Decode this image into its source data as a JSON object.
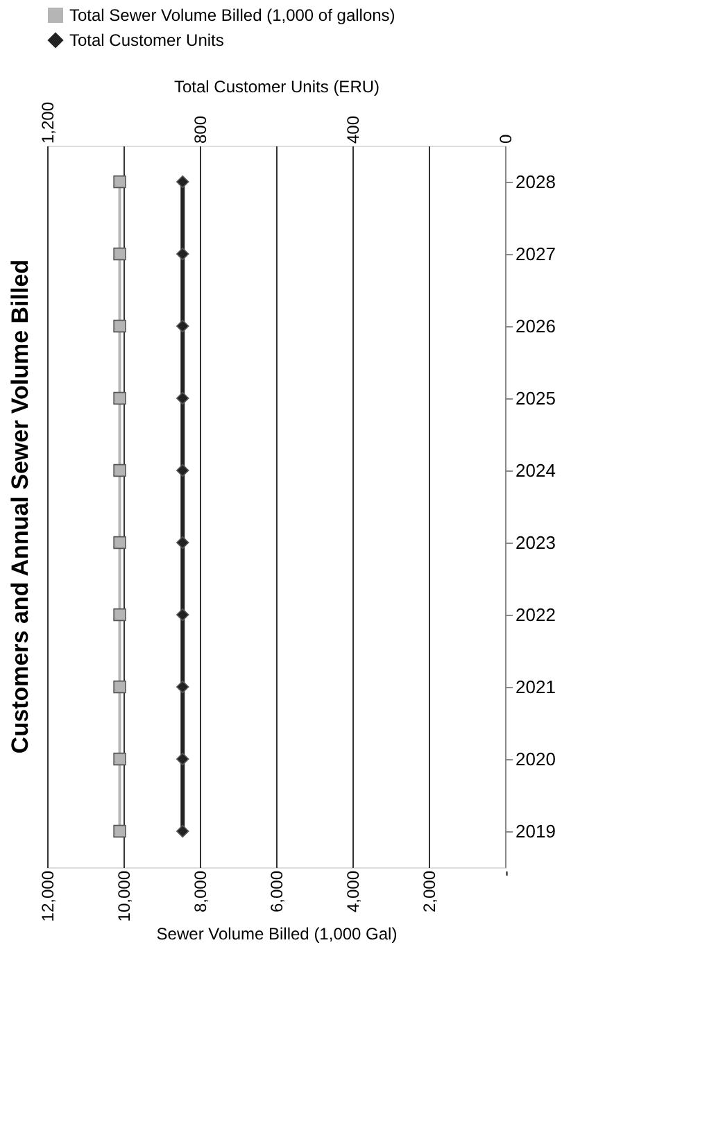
{
  "chart_data": {
    "type": "line",
    "orientation": "horizontal",
    "title": "Customers and Annual Sewer Volume Billed",
    "categories": [
      "2028",
      "2027",
      "2026",
      "2025",
      "2024",
      "2023",
      "2022",
      "2021",
      "2020",
      "2019"
    ],
    "series": [
      {
        "name": "Total Sewer Volume Billed (1,000 of gallons)",
        "color": "#b5b5b5",
        "marker": "square",
        "values": [
          10100,
          10100,
          10100,
          10100,
          10100,
          10100,
          10100,
          10100,
          10100,
          10100
        ]
      },
      {
        "name": "Total Customer Units",
        "color": "#222222",
        "marker": "diamond",
        "axis": "x2",
        "values": [
          845,
          845,
          845,
          845,
          845,
          845,
          845,
          845,
          845,
          845
        ]
      }
    ],
    "xlabel": "Sewer Volume Billed (1,000 Gal)",
    "x2label": "Total Customer Units (ERU)",
    "xlim": [
      12000,
      0
    ],
    "xticks": [
      {
        "value": 12000,
        "label": "12,000"
      },
      {
        "value": 10000,
        "label": "10,000"
      },
      {
        "value": 8000,
        "label": "8,000"
      },
      {
        "value": 6000,
        "label": "6,000"
      },
      {
        "value": 4000,
        "label": "4,000"
      },
      {
        "value": 2000,
        "label": "2,000"
      },
      {
        "value": 0,
        "label": "-"
      }
    ],
    "x2lim": [
      1200,
      0
    ],
    "x2ticks": [
      {
        "value": 1200,
        "label": "1,200"
      },
      800,
      400,
      0
    ],
    "grid": true,
    "legend": "top"
  }
}
